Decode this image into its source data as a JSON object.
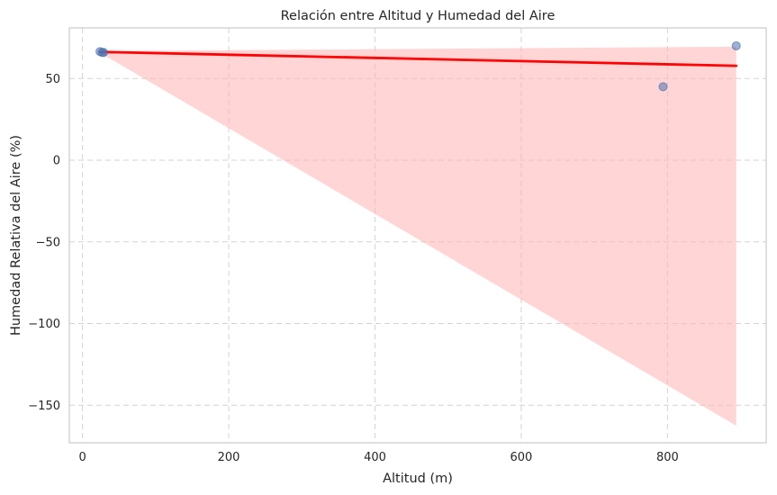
{
  "chart_data": {
    "type": "scatter",
    "title": "Relación entre Altitud y Humedad del Aire",
    "xlabel": "Altitud (m)",
    "ylabel": "Humedad Relativa del Aire (%)",
    "xlim": [
      -18,
      935
    ],
    "ylim": [
      -173,
      81
    ],
    "xticks": [
      0,
      200,
      400,
      600,
      800
    ],
    "yticks": [
      -150,
      -100,
      -50,
      0,
      50
    ],
    "xtick_labels": [
      "0",
      "200",
      "400",
      "600",
      "800"
    ],
    "ytick_labels": [
      "−150",
      "−100",
      "−50",
      "0",
      "50"
    ],
    "grid": true,
    "points": [
      {
        "x": 24,
        "y": 66.5
      },
      {
        "x": 27,
        "y": 66
      },
      {
        "x": 29,
        "y": 66
      },
      {
        "x": 794,
        "y": 45
      },
      {
        "x": 894,
        "y": 70
      }
    ],
    "regression": {
      "x": [
        24,
        894
      ],
      "y": [
        66.3,
        57.8
      ]
    },
    "confidence_band": {
      "x": [
        24,
        894
      ],
      "upper": [
        66.8,
        69.5
      ],
      "lower": [
        65.8,
        -162.5
      ]
    },
    "colors": {
      "points": "#4c72b0",
      "line": "#ff0000",
      "band": "#ffb3b3"
    }
  }
}
